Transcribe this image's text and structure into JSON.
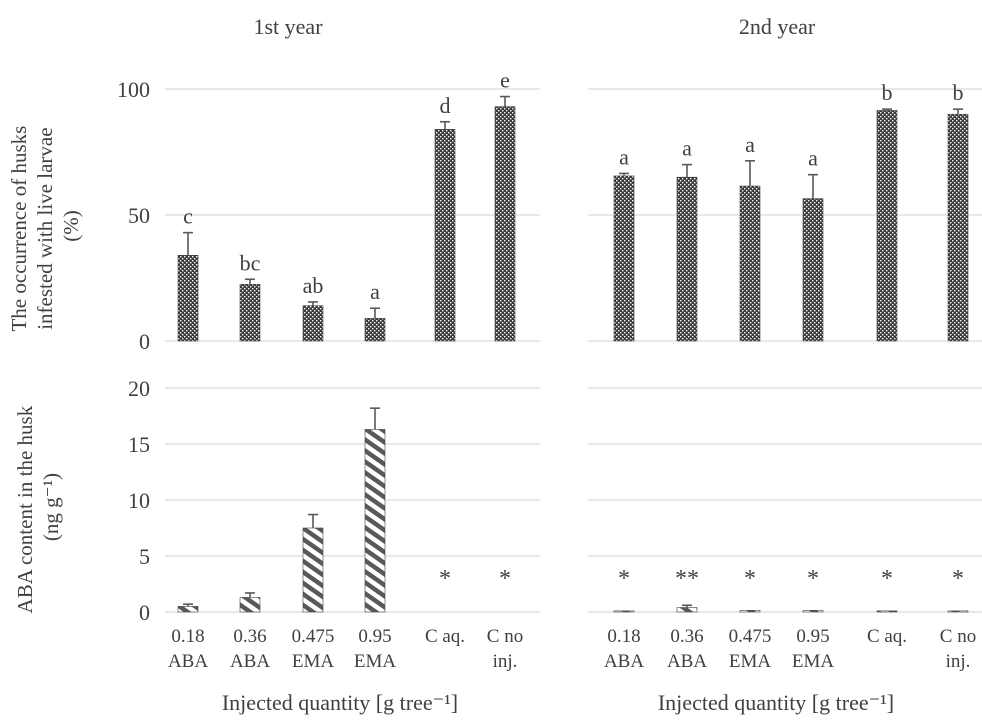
{
  "colors": {
    "text": "#404040",
    "grid": "#d9d9d9",
    "bar_dark": "#3a3a3a",
    "hatch": "#595959",
    "error": "#595959"
  },
  "icons": {
    "top_bar_fill": "checkered-dot-pattern",
    "bottom_bar_fill": "diagonal-hatch-pattern"
  },
  "layout_labels": {
    "ylabel_top": [
      "The occurrence of husks",
      "infested with live larvae",
      "(%)"
    ],
    "ylabel_bottom": [
      "ABA content in the husk",
      "(ng g⁻¹)"
    ]
  },
  "chart_data": [
    {
      "type": "bar",
      "panel": "top-left",
      "title": "1st year",
      "ylim": [
        0,
        100
      ],
      "yticks": [
        "0",
        "50",
        "100"
      ],
      "grid": true,
      "categories": [
        "0.18 ABA",
        "0.36 ABA",
        "0.475 EMA",
        "0.95 EMA",
        "C aq.",
        "C no inj."
      ],
      "values": [
        34,
        22.5,
        14,
        9,
        84,
        93
      ],
      "errors": [
        9,
        2,
        1.5,
        4,
        3,
        4
      ],
      "labels": [
        "c",
        "bc",
        "ab",
        "a",
        "d",
        "e"
      ]
    },
    {
      "type": "bar",
      "panel": "top-right",
      "title": "2nd year",
      "ylim": [
        0,
        100
      ],
      "grid": true,
      "categories": [
        "0.18 ABA",
        "0.36 ABA",
        "0.475 EMA",
        "0.95 EMA",
        "C aq.",
        "C no inj."
      ],
      "values": [
        65.5,
        65,
        61.5,
        56.5,
        91.5,
        90
      ],
      "errors": [
        1,
        5,
        10,
        9.5,
        0.5,
        2
      ],
      "labels": [
        "a",
        "a",
        "a",
        "a",
        "b",
        "b"
      ]
    },
    {
      "type": "bar",
      "panel": "bottom-left",
      "ylim": [
        0,
        20
      ],
      "yticks": [
        "0",
        "5",
        "10",
        "15",
        "20"
      ],
      "grid": true,
      "categories": [
        "0.18 ABA",
        "0.36 ABA",
        "0.475 EMA",
        "0.95 EMA",
        "C aq.",
        "C no inj."
      ],
      "values": [
        0.5,
        1.3,
        7.5,
        16.3,
        0,
        0
      ],
      "errors": [
        0.2,
        0.4,
        1.2,
        1.9,
        0,
        0
      ],
      "labels": [
        "",
        "",
        "",
        "",
        "*",
        "*"
      ],
      "xtick_top": [
        "0.18",
        "0.36",
        "0.475",
        "0.95",
        "C aq.",
        "C no"
      ],
      "xtick_bottom": [
        "ABA",
        "ABA",
        "EMA",
        "EMA",
        "",
        "inj."
      ],
      "xlabel": "Injected quantity [g tree⁻¹]"
    },
    {
      "type": "bar",
      "panel": "bottom-right",
      "ylim": [
        0,
        20
      ],
      "grid": true,
      "categories": [
        "0.18 ABA",
        "0.36 ABA",
        "0.475 EMA",
        "0.95 EMA",
        "C aq.",
        "C no inj."
      ],
      "values": [
        0.1,
        0.4,
        0.15,
        0.15,
        0.1,
        0.1
      ],
      "errors": [
        0,
        0.2,
        0,
        0,
        0,
        0
      ],
      "labels": [
        "*",
        "**",
        "*",
        "*",
        "*",
        "*"
      ],
      "xtick_top": [
        "0.18",
        "0.36",
        "0.475",
        "0.95",
        "C aq.",
        "C no"
      ],
      "xtick_bottom": [
        "ABA",
        "ABA",
        "EMA",
        "EMA",
        "",
        "inj."
      ],
      "xlabel": "Injected quantity [g tree⁻¹]"
    }
  ]
}
